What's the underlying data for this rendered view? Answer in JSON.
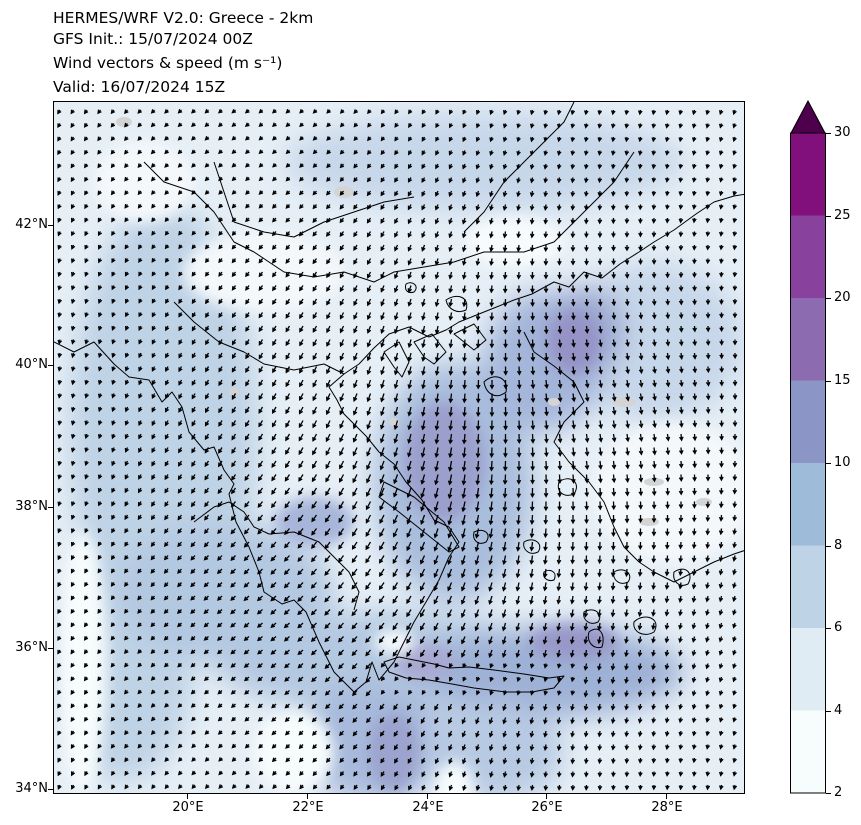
{
  "titles": {
    "line1": "HERMES/WRF V2.0: Greece - 2km",
    "line2": "GFS Init.: 15/07/2024 00Z",
    "line3": "Wind vectors & speed (m s⁻¹)",
    "line4": "Valid: 16/07/2024 15Z"
  },
  "map": {
    "lon_range": [
      17.8,
      29.3
    ],
    "lat_range": [
      33.9,
      43.7
    ],
    "lat_ticks": [
      "42°N",
      "40°N",
      "38°N",
      "36°N",
      "34°N"
    ],
    "lon_ticks": [
      "20°E",
      "22°E",
      "24°E",
      "26°E",
      "28°E"
    ],
    "coastline_color": "#000000",
    "arrow_color": "#000000"
  },
  "colorbar": {
    "levels": [
      "2",
      "4",
      "6",
      "8",
      "10",
      "15",
      "20",
      "25",
      "30"
    ],
    "colors": [
      "#f7fcfd",
      "#e0ecf4",
      "#bfd3e6",
      "#9ebcda",
      "#8c96c6",
      "#8c6bb1",
      "#88419d",
      "#810f7c"
    ],
    "extend_color": "#4d004b"
  }
}
